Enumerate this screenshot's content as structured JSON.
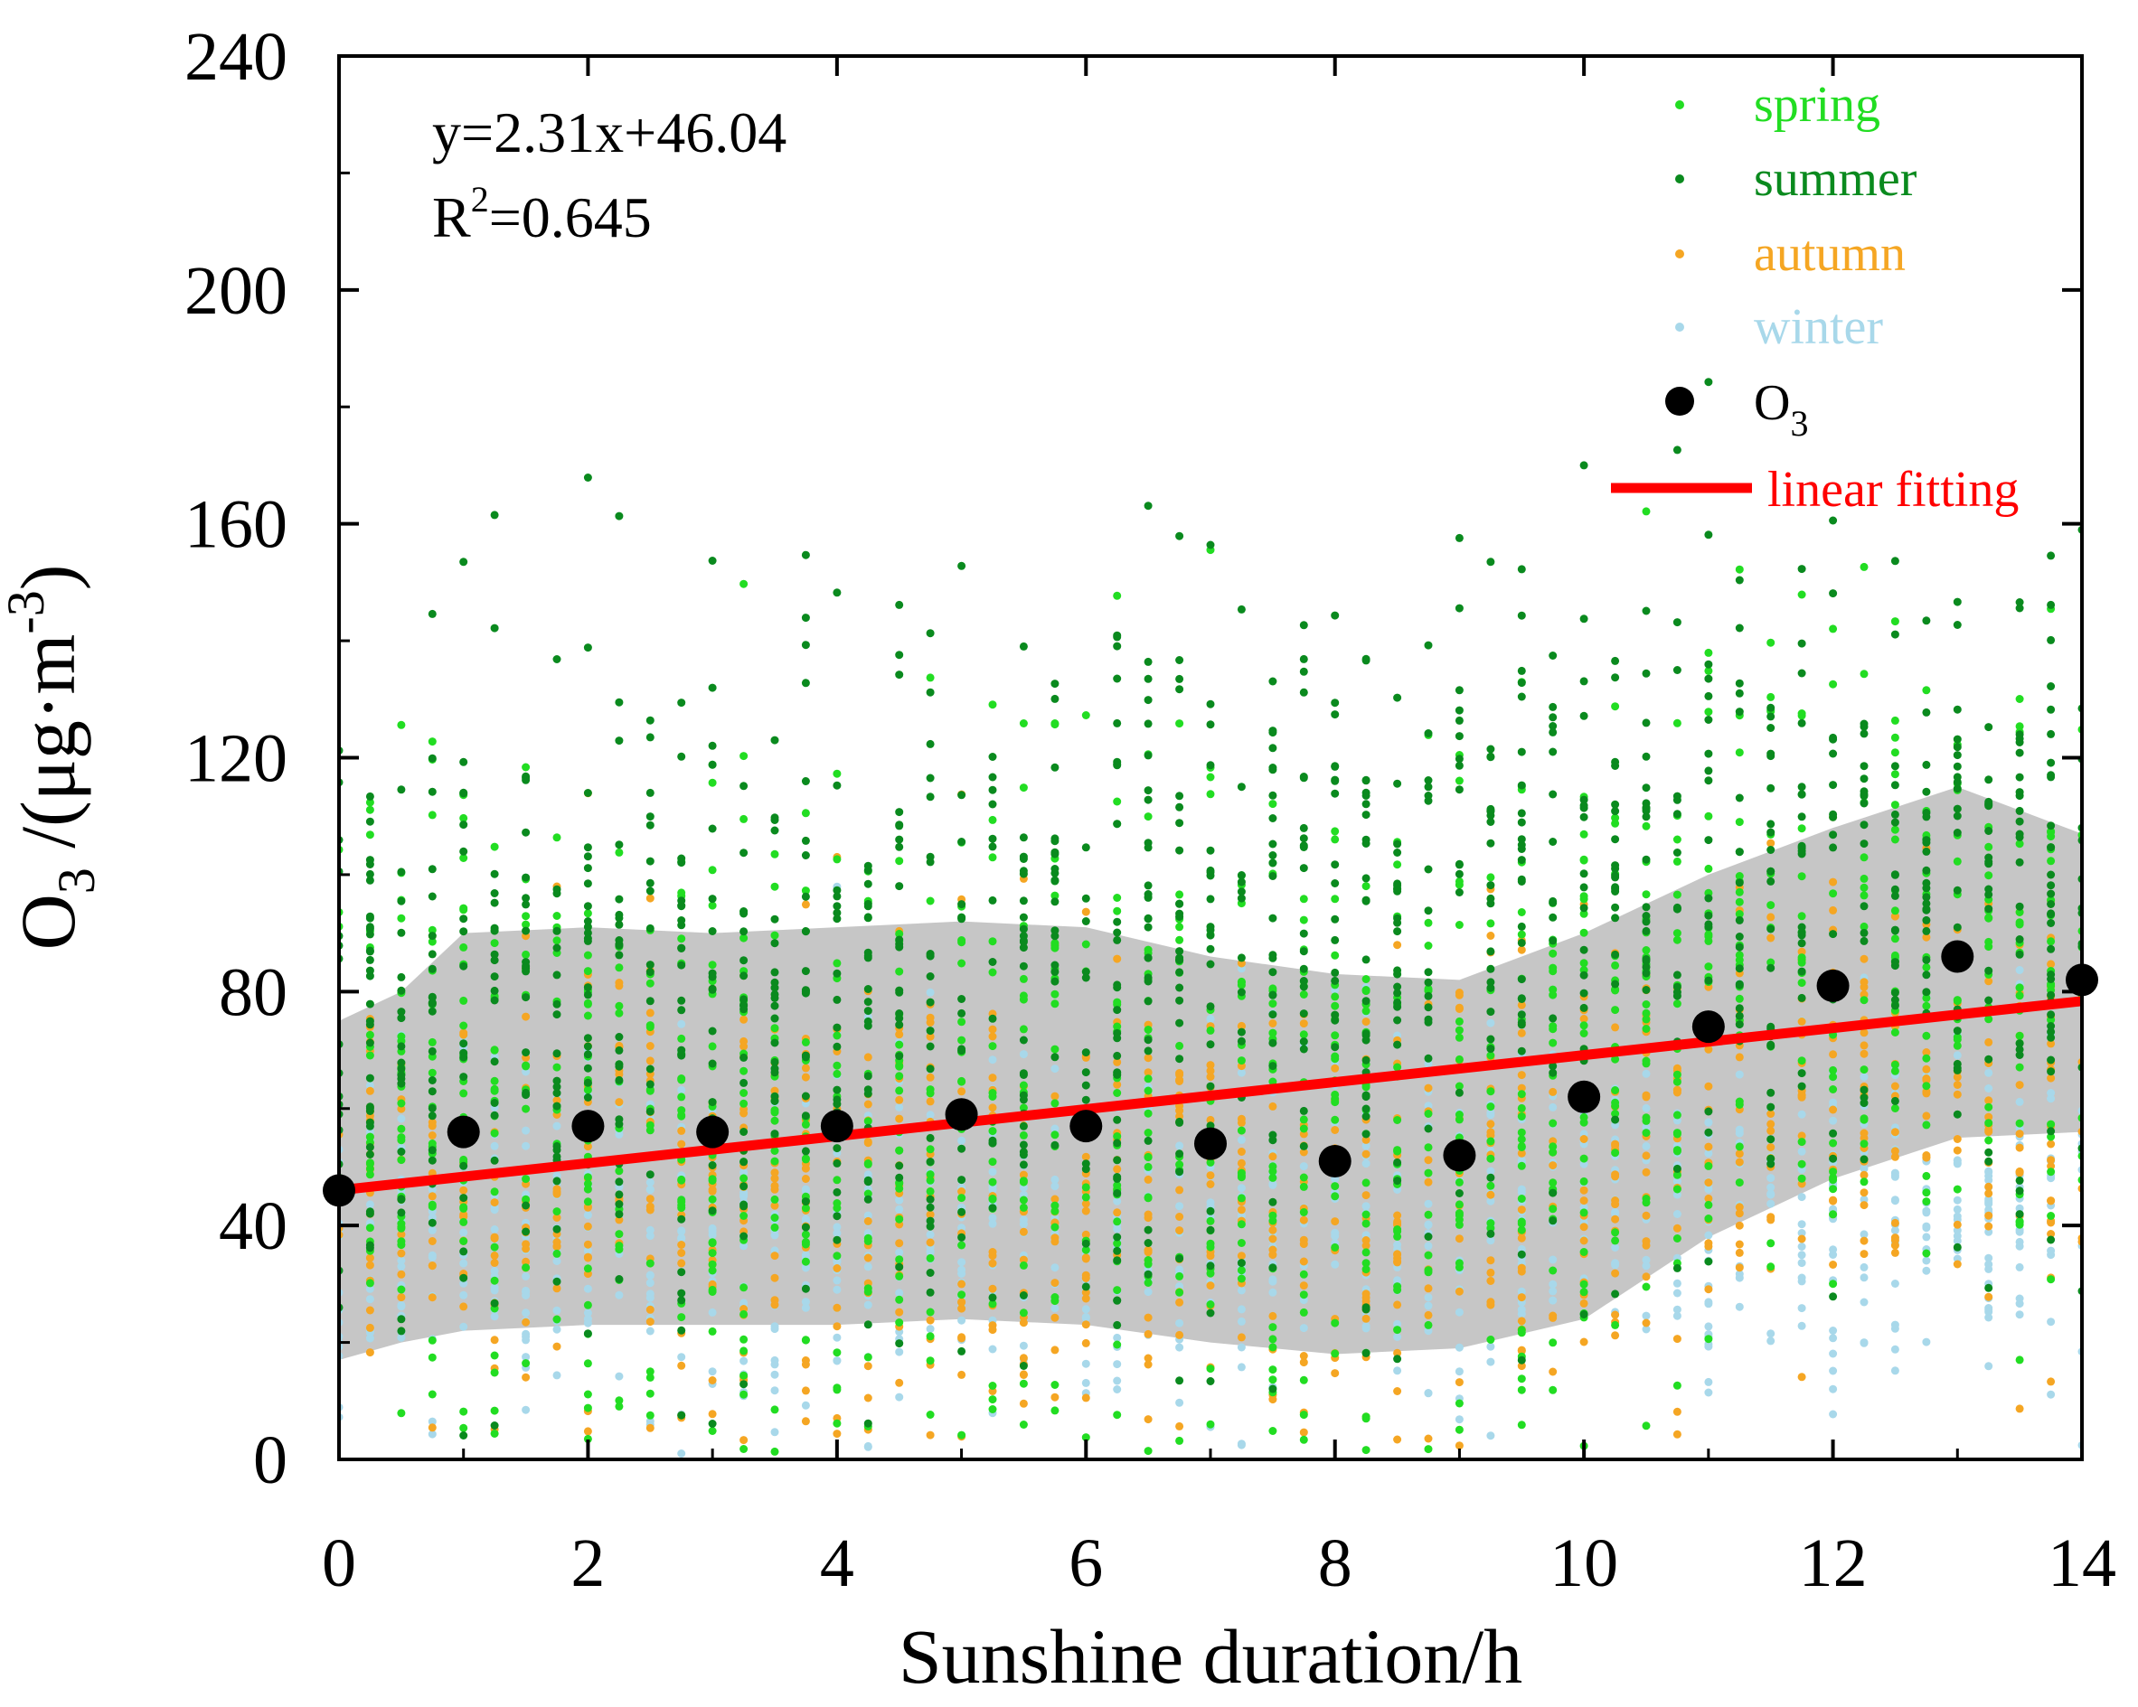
{
  "chart_data": {
    "type": "scatter",
    "title": "",
    "xlabel": "Sunshine duration/h",
    "ylabel": {
      "base": "O",
      "sub1": "3",
      "mid": " /(μg·m",
      "sup": "-3",
      "end": ")"
    },
    "xlim": [
      0,
      14
    ],
    "ylim": [
      0,
      240
    ],
    "xticks": [
      0,
      2,
      4,
      6,
      8,
      10,
      12,
      14
    ],
    "yticks": [
      0,
      40,
      80,
      120,
      160,
      200,
      240
    ],
    "colors": {
      "spring": "#22dd22",
      "summer": "#0a8a1e",
      "autumn": "#f5a623",
      "winter": "#a8d8ea",
      "o3": "#000000",
      "fit": "#ff0000",
      "band": "#c0c0c0"
    },
    "legend": {
      "position": "top-right",
      "items": [
        {
          "label": "spring",
          "key": "spring"
        },
        {
          "label": "summer",
          "key": "summer"
        },
        {
          "label": "autumn",
          "key": "autumn"
        },
        {
          "label": "winter",
          "key": "winter"
        },
        {
          "label": "O",
          "sub": "3",
          "key": "o3"
        },
        {
          "label": "linear fitting",
          "key": "fit"
        }
      ]
    },
    "annotation": {
      "equation": "y=2.31x+46.04",
      "r2_prefix": "R",
      "r2_sup": "2",
      "r2_value": "=0.645"
    },
    "fit": {
      "slope": 2.31,
      "intercept": 46.04,
      "x_range": [
        0,
        14
      ]
    },
    "mean_series": {
      "name": "O3",
      "x": [
        0,
        1,
        2,
        3,
        4,
        5,
        6,
        7,
        8,
        9,
        10,
        11,
        12,
        13,
        14
      ],
      "y": [
        46,
        56,
        57,
        56,
        57,
        59,
        57,
        54,
        51,
        52,
        62,
        74,
        81,
        86,
        82
      ]
    },
    "band": {
      "x": [
        0,
        0.5,
        1,
        2,
        3,
        4,
        5,
        6,
        7,
        8,
        9,
        10,
        11,
        12,
        13,
        14
      ],
      "upper": [
        75,
        80,
        90,
        91,
        90,
        91,
        92,
        91,
        86,
        83,
        82,
        90,
        100,
        108,
        115,
        107
      ],
      "lower": [
        17,
        20,
        22,
        23,
        23,
        23,
        24,
        23,
        20,
        18,
        19,
        24,
        38,
        48,
        55,
        56
      ]
    },
    "scatter_series": [
      {
        "name": "spring",
        "key": "spring",
        "center": [
          55,
          65,
          62,
          58,
          60,
          62,
          62,
          60,
          58,
          60,
          68,
          80,
          82,
          85,
          82
        ],
        "spread": 30,
        "n": 1100
      },
      {
        "name": "summer",
        "key": "summer",
        "center": [
          68,
          80,
          78,
          75,
          78,
          82,
          88,
          88,
          92,
          95,
          100,
          100,
          98,
          100,
          95
        ],
        "spread": 30,
        "n": 1200
      },
      {
        "name": "autumn",
        "key": "autumn",
        "center": [
          42,
          48,
          48,
          46,
          46,
          48,
          48,
          44,
          42,
          44,
          50,
          60,
          62,
          62,
          60
        ],
        "spread": 22,
        "n": 900
      },
      {
        "name": "winter",
        "key": "winter",
        "center": [
          32,
          38,
          38,
          36,
          38,
          40,
          40,
          40,
          40,
          42,
          44,
          46,
          46,
          46,
          45
        ],
        "spread": 16,
        "n": 1000
      }
    ]
  }
}
